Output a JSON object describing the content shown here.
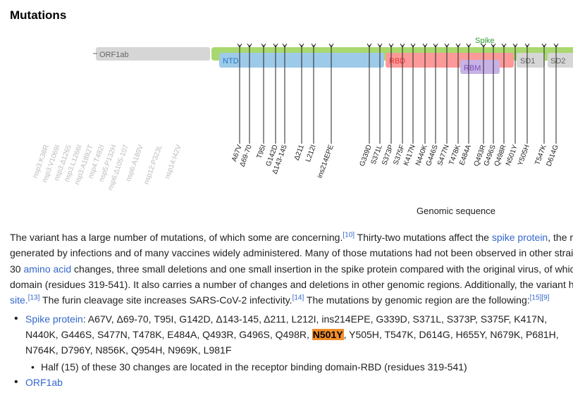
{
  "heading": "Mutations",
  "diagram": {
    "regions": {
      "orf1ab": "ORF1ab",
      "spike": "Spike",
      "ntd": "NTD",
      "rbd": "RBD",
      "rbm": "RBM",
      "sd1": "SD1",
      "sd2": "SD2"
    },
    "orf_labels": [
      "nsp3:K38R",
      "nsp3:V1069I",
      "nsp3:Δ1265",
      "nsp3:L1266I",
      "nsp3:A1892T",
      "nsp4:T492I",
      "nsp5:P132H",
      "nsp6:Δ105-107",
      "nsp6:A189V",
      "nsp12:P323L",
      "nsp14:I42V"
    ],
    "spike_labels": [
      "A67V",
      "Δ69-70",
      "T95I",
      "G142D",
      "Δ143-145",
      "Δ211",
      "L212I",
      "ins214EPE",
      "G339D",
      "S371L",
      "S373P",
      "S375F",
      "K417N",
      "N440K",
      "G446S",
      "S477N",
      "T478K",
      "E484A",
      "Q493R",
      "G496S",
      "Q498R",
      "N501Y",
      "Y505H",
      "T547K",
      "D614G"
    ],
    "axis_label": "Genomic sequence"
  },
  "paragraph": {
    "l1a": "The variant has a large number of mutations, of which some are concerning.",
    "ref10": "[10]",
    "l1b": " Thirty-two mutations affect the ",
    "spike_link": "spike protein",
    "l1c": ", the m",
    "l2": "generated by infections and of many vaccines widely administered. Many of those mutations had not been observed in other strai",
    "l3a": "30 ",
    "amino_link": "amino acid",
    "l3b": " changes, three small deletions and one small insertion in the spike protein compared with the original virus, of whic",
    "l4": "domain (residues 319-541). It also carries a number of changes and deletions in other genomic regions. Additionally, the variant h",
    "site_link": "site.",
    "ref13": "[13]",
    "l5a": " The furin cleavage site increases SARS-CoV-2 infectivity.",
    "ref14": "[14]",
    "l5b": " The mutations by genomic region are the following:",
    "ref15": "[15]",
    "ref9": "[9]"
  },
  "list": {
    "spike_link": "Spike protein",
    "spike_pre": ": A67V, Δ69-70, T95I, G142D, Δ143-145, Δ211, L212I, ins214EPE, G339D, S371L, S373P, S375F, K417N, N440K, G446S, S477N, T478K, E484A, Q493R, G496S, Q498R, ",
    "highlight": "N501Y",
    "spike_post": ", Y505H, T547K, D614G, H655Y, N679K, P681H, N764K, D796Y, N856K, Q954H, N969K, L981F",
    "sub_item": "Half (15) of these 30 changes are located in the receptor binding domain-RBD (residues 319-541)",
    "orf_link": "ORF1ab"
  },
  "colors": {
    "orf1ab": "#d6d6d6",
    "spike": "#a9d86e",
    "ntd": "#9ecae9",
    "rbd": "#fb9a99",
    "rbm": "#c7b2e5",
    "sd": "#d6d6d6",
    "highlight": "#f28e2b",
    "link": "#3366cc"
  }
}
